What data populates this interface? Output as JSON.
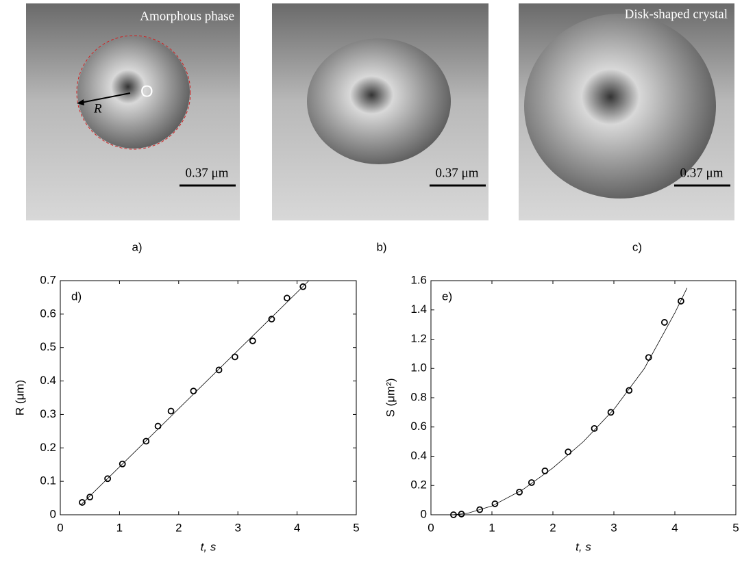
{
  "images": [
    {
      "label": "a)",
      "caption": "Amorphous phase",
      "scale_bar": "0.37 μm",
      "center_mark": "O",
      "radius_mark": "R"
    },
    {
      "label": "b)",
      "scale_bar": "0.37 μm"
    },
    {
      "label": "c)",
      "caption": "Disk-shaped crystal",
      "scale_bar": "0.37 μm"
    }
  ],
  "chart_data": [
    {
      "type": "scatter",
      "panel_label": "d)",
      "xlabel": "t, s",
      "ylabel": "R (μm)",
      "xlim": [
        0,
        5
      ],
      "xticks": [
        0,
        1,
        2,
        3,
        4,
        5
      ],
      "ylim": [
        0,
        0.7
      ],
      "yticks": [
        0,
        0.1,
        0.2,
        0.3,
        0.4,
        0.5,
        0.6,
        0.7
      ],
      "series": [
        {
          "color": "#000000",
          "x": [
            0.37,
            0.5,
            0.8,
            1.05,
            1.45,
            1.65,
            1.87,
            2.25,
            2.68,
            2.95,
            3.25,
            3.57,
            3.83,
            4.1
          ],
          "values": [
            0.037,
            0.053,
            0.108,
            0.152,
            0.22,
            0.265,
            0.31,
            0.37,
            0.433,
            0.472,
            0.52,
            0.585,
            0.648,
            0.682
          ]
        }
      ],
      "fit": {
        "x": [
          0.35,
          4.2
        ],
        "values": [
          0.03,
          0.7
        ]
      }
    },
    {
      "type": "scatter",
      "panel_label": "e)",
      "xlabel": "t, s",
      "ylabel": "S (μm²)",
      "xlim": [
        0,
        5
      ],
      "xticks": [
        0,
        1,
        2,
        3,
        4,
        5
      ],
      "ylim": [
        0,
        1.6
      ],
      "yticks": [
        0,
        0.2,
        0.4,
        0.6,
        0.8,
        {
          "value": 1,
          "label": "1.0"
        },
        1.2,
        1.4,
        1.6
      ],
      "series": [
        {
          "color": "#000000",
          "x": [
            0.37,
            0.5,
            0.8,
            1.05,
            1.45,
            1.65,
            1.87,
            2.25,
            2.68,
            2.95,
            3.25,
            3.57,
            3.83,
            4.1
          ],
          "values": [
            0.0,
            0.005,
            0.035,
            0.075,
            0.155,
            0.22,
            0.3,
            0.43,
            0.59,
            0.7,
            0.85,
            1.075,
            1.315,
            1.46
          ]
        }
      ],
      "fit": {
        "x": [
          0.35,
          0.6,
          1.0,
          1.5,
          2.0,
          2.5,
          3.0,
          3.5,
          4.0,
          4.2
        ],
        "values": [
          0,
          0.01,
          0.06,
          0.17,
          0.32,
          0.5,
          0.72,
          1.0,
          1.38,
          1.55
        ]
      }
    }
  ]
}
